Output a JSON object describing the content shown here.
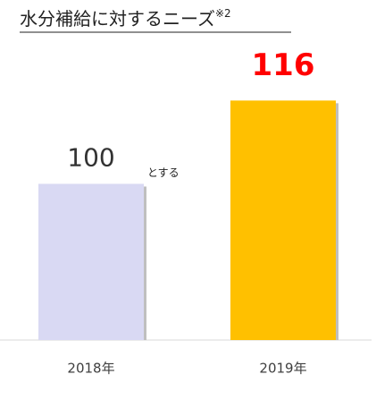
{
  "chart_data": {
    "type": "bar",
    "title": "水分補給に対するニーズ",
    "title_note": "※2",
    "categories": [
      "2018年",
      "2019年"
    ],
    "values": [
      100,
      116
    ],
    "colors": [
      "#d9d9f3",
      "#ffc000"
    ],
    "label_colors": [
      "#333333",
      "#ff0000"
    ],
    "annotation": "とする",
    "ylim": [
      70,
      125
    ],
    "grid": false
  }
}
